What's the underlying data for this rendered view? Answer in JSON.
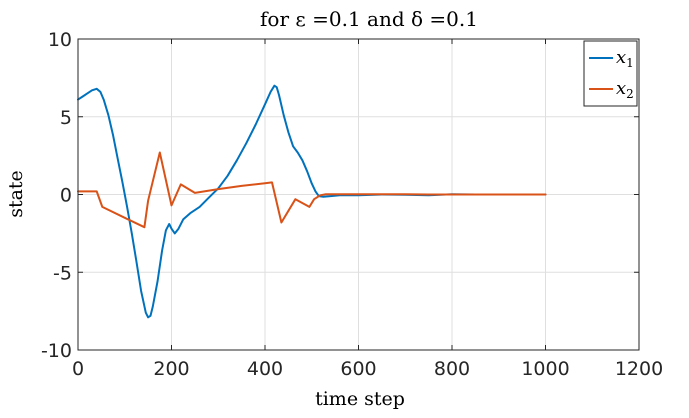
{
  "chart_data": {
    "type": "line",
    "title": "for ε =0.1 and δ =0.1",
    "xlabel": "time step",
    "ylabel": "state",
    "xlim": [
      0,
      1200
    ],
    "ylim": [
      -10,
      10
    ],
    "x_ticks": [
      0,
      200,
      400,
      600,
      800,
      1000,
      1200
    ],
    "y_ticks": [
      10,
      5,
      0,
      -5,
      -10
    ],
    "x_tick_labels": [
      "0",
      "200",
      "400",
      "600",
      "800",
      "1000",
      "1200"
    ],
    "y_tick_labels": [
      "10",
      "5",
      "0",
      "-5",
      "-10"
    ],
    "grid": true,
    "legend_position": "top-right",
    "series": [
      {
        "name": "x1",
        "legend_symbol": "x",
        "legend_subscript": "1",
        "color": "#0072BD",
        "points": [
          [
            0,
            6.1
          ],
          [
            10,
            6.3
          ],
          [
            20,
            6.5
          ],
          [
            30,
            6.7
          ],
          [
            40,
            6.8
          ],
          [
            48,
            6.6
          ],
          [
            55,
            6.1
          ],
          [
            65,
            5.1
          ],
          [
            75,
            3.8
          ],
          [
            85,
            2.3
          ],
          [
            95,
            0.8
          ],
          [
            105,
            -0.8
          ],
          [
            115,
            -2.5
          ],
          [
            125,
            -4.3
          ],
          [
            135,
            -6.2
          ],
          [
            145,
            -7.6
          ],
          [
            150,
            -7.9
          ],
          [
            155,
            -7.8
          ],
          [
            160,
            -7.2
          ],
          [
            170,
            -5.6
          ],
          [
            180,
            -3.6
          ],
          [
            188,
            -2.3
          ],
          [
            195,
            -1.9
          ],
          [
            200,
            -2.2
          ],
          [
            207,
            -2.5
          ],
          [
            215,
            -2.2
          ],
          [
            225,
            -1.6
          ],
          [
            240,
            -1.2
          ],
          [
            260,
            -0.8
          ],
          [
            280,
            -0.2
          ],
          [
            300,
            0.4
          ],
          [
            320,
            1.2
          ],
          [
            340,
            2.2
          ],
          [
            360,
            3.3
          ],
          [
            380,
            4.5
          ],
          [
            400,
            5.8
          ],
          [
            412,
            6.6
          ],
          [
            420,
            7.0
          ],
          [
            425,
            6.9
          ],
          [
            430,
            6.4
          ],
          [
            440,
            5.1
          ],
          [
            450,
            4.0
          ],
          [
            460,
            3.1
          ],
          [
            470,
            2.7
          ],
          [
            480,
            2.2
          ],
          [
            490,
            1.5
          ],
          [
            500,
            0.7
          ],
          [
            508,
            0.2
          ],
          [
            515,
            -0.1
          ],
          [
            525,
            -0.15
          ],
          [
            540,
            -0.1
          ],
          [
            560,
            -0.05
          ],
          [
            600,
            -0.05
          ],
          [
            650,
            0.0
          ],
          [
            700,
            -0.02
          ],
          [
            750,
            -0.05
          ],
          [
            800,
            0.02
          ],
          [
            850,
            0.0
          ],
          [
            900,
            0.0
          ],
          [
            950,
            0.0
          ],
          [
            1000,
            0.0
          ]
        ]
      },
      {
        "name": "x2",
        "legend_symbol": "x",
        "legend_subscript": "2",
        "color": "#D95319",
        "points": [
          [
            0,
            0.2
          ],
          [
            10,
            0.2
          ],
          [
            40,
            0.2
          ],
          [
            52,
            -0.8
          ],
          [
            100,
            -1.5
          ],
          [
            142,
            -2.1
          ],
          [
            150,
            -0.4
          ],
          [
            175,
            2.7
          ],
          [
            200,
            -0.7
          ],
          [
            220,
            0.65
          ],
          [
            250,
            0.1
          ],
          [
            300,
            0.35
          ],
          [
            350,
            0.55
          ],
          [
            400,
            0.72
          ],
          [
            415,
            0.78
          ],
          [
            435,
            -1.8
          ],
          [
            465,
            -0.3
          ],
          [
            495,
            -0.8
          ],
          [
            505,
            -0.3
          ],
          [
            518,
            -0.05
          ],
          [
            530,
            0.02
          ],
          [
            600,
            0.02
          ],
          [
            700,
            0.02
          ],
          [
            750,
            0.0
          ],
          [
            800,
            0.0
          ],
          [
            850,
            0.0
          ],
          [
            900,
            0.0
          ],
          [
            950,
            0.0
          ],
          [
            1000,
            0.0
          ]
        ]
      }
    ]
  }
}
